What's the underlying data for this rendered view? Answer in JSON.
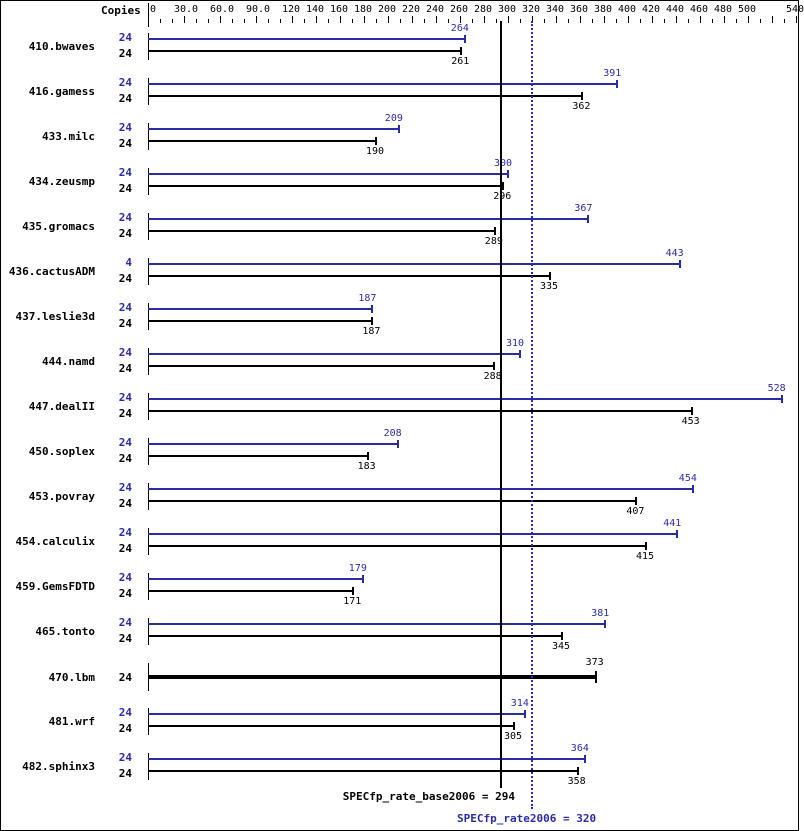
{
  "chart_data": {
    "type": "bar",
    "orientation": "horizontal",
    "title": "",
    "xlabel": "",
    "ylabel": "",
    "header_label": "Copies",
    "xlim": [
      0,
      540
    ],
    "x_ticks": [
      "0",
      "30.0",
      "60.0",
      "90.0",
      "120",
      "140",
      "160",
      "180",
      "200",
      "220",
      "240",
      "260",
      "280",
      "300",
      "320",
      "340",
      "360",
      "380",
      "400",
      "420",
      "440",
      "460",
      "480",
      "500",
      "540"
    ],
    "x_tick_values": [
      0,
      30,
      60,
      90,
      120,
      140,
      160,
      180,
      200,
      220,
      240,
      260,
      280,
      300,
      320,
      340,
      360,
      380,
      400,
      420,
      440,
      460,
      480,
      500,
      540
    ],
    "categories": [
      "410.bwaves",
      "416.gamess",
      "433.milc",
      "434.zeusmp",
      "435.gromacs",
      "436.cactusADM",
      "437.leslie3d",
      "444.namd",
      "447.dealII",
      "450.soplex",
      "453.povray",
      "454.calculix",
      "459.GemsFDTD",
      "465.tonto",
      "470.lbm",
      "481.wrf",
      "482.sphinx3"
    ],
    "series": [
      {
        "name": "SPECfp_rate2006 (peak)",
        "color": "#2b2ba6",
        "copies": [
          24,
          24,
          24,
          24,
          24,
          4,
          24,
          24,
          24,
          24,
          24,
          24,
          24,
          24,
          null,
          24,
          24
        ],
        "values": [
          264,
          391,
          209,
          300,
          367,
          443,
          187,
          310,
          528,
          208,
          454,
          441,
          179,
          381,
          null,
          314,
          364
        ]
      },
      {
        "name": "SPECfp_rate_base2006 (base)",
        "color": "#000000",
        "copies": [
          24,
          24,
          24,
          24,
          24,
          24,
          24,
          24,
          24,
          24,
          24,
          24,
          24,
          24,
          24,
          24,
          24
        ],
        "values": [
          261,
          362,
          190,
          296,
          289,
          335,
          187,
          288,
          453,
          183,
          407,
          415,
          171,
          345,
          373,
          305,
          358
        ]
      }
    ],
    "reference_lines": [
      {
        "label": "SPECfp_rate_base2006 = 294",
        "value": 294,
        "style": "solid",
        "color": "#000000"
      },
      {
        "label": "SPECfp_rate2006 = 320",
        "value": 320,
        "style": "dotted",
        "color": "#2b2ba6"
      }
    ],
    "grid": false,
    "legend": "none"
  },
  "header": {
    "copies_label": "Copies"
  },
  "summary": {
    "base_label": "SPECfp_rate_base2006 = 294",
    "peak_label": "SPECfp_rate2006 = 320"
  },
  "colors": {
    "peak": "#2b2ba6",
    "base": "#000000"
  }
}
